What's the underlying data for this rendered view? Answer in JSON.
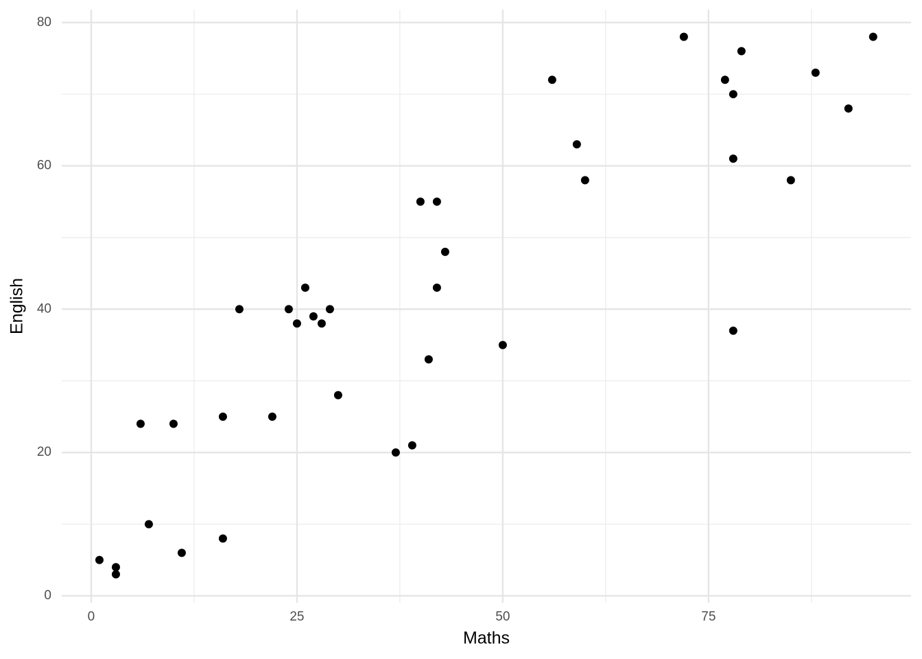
{
  "chart_data": {
    "type": "scatter",
    "x_label": "Maths",
    "y_label": "English",
    "xlim": [
      -3.58,
      99.6
    ],
    "ylim": [
      -0.96,
      81.8
    ],
    "xticks": [
      0,
      25,
      50,
      75
    ],
    "yticks": [
      0,
      20,
      40,
      60,
      80
    ],
    "x_minor_gridlines": [
      12.5,
      37.5,
      62.5,
      87.5
    ],
    "y_minor_gridlines": [
      10,
      30,
      50,
      70
    ],
    "grid": true,
    "color": "#000000",
    "x": [
      1,
      3,
      3,
      6,
      7,
      10,
      11,
      16,
      16,
      18,
      22,
      24,
      25,
      26,
      27,
      28,
      29,
      30,
      37,
      39,
      40,
      41,
      42,
      42,
      43,
      50,
      56,
      59,
      60,
      72,
      77,
      78,
      78,
      78,
      79,
      85,
      88,
      92,
      95
    ],
    "values": [
      5,
      4,
      3,
      24,
      10,
      24,
      6,
      25,
      8,
      40,
      25,
      40,
      38,
      43,
      39,
      38,
      40,
      28,
      20,
      21,
      55,
      33,
      55,
      43,
      48,
      35,
      72,
      63,
      58,
      78,
      72,
      70,
      61,
      37,
      76,
      58,
      73,
      68,
      78
    ]
  }
}
